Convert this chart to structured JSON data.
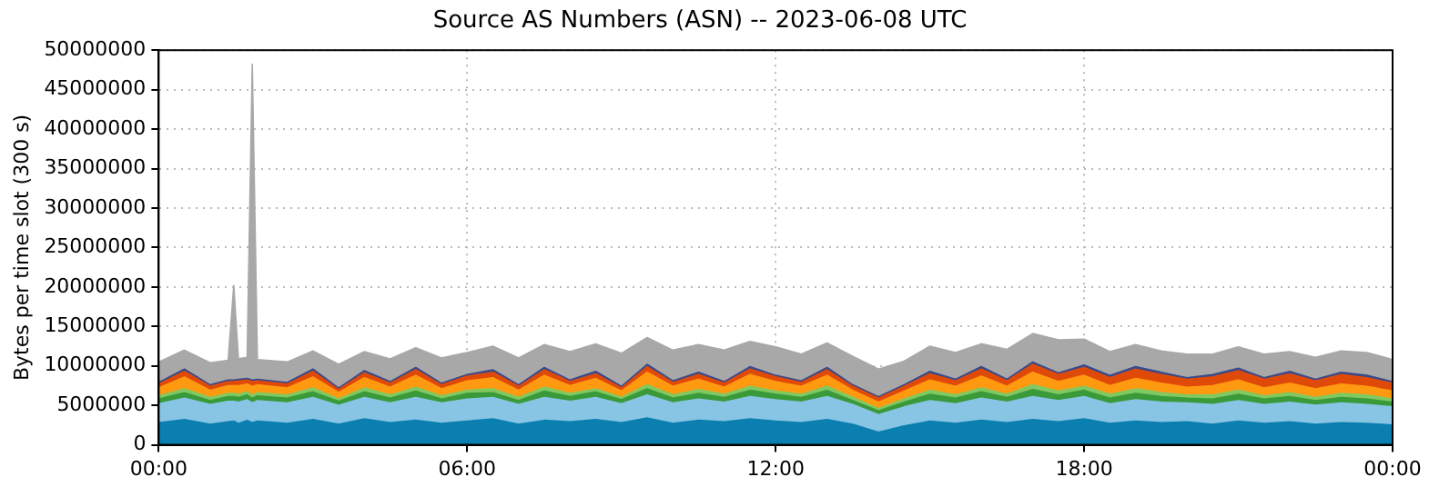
{
  "chart_data": {
    "type": "area",
    "title": "Source AS Numbers (ASN) -- 2023-06-08 UTC",
    "ylabel": "Bytes per time slot (300 s)",
    "stacked": true,
    "grid": true,
    "legend": false,
    "x": [
      0,
      0.5,
      1,
      1.35,
      1.46,
      1.55,
      1.72,
      1.82,
      1.92,
      2.5,
      3,
      3.5,
      4,
      4.5,
      5,
      5.5,
      6,
      6.5,
      7,
      7.5,
      8,
      8.5,
      9,
      9.5,
      10,
      10.5,
      11,
      11.5,
      12,
      12.5,
      13,
      13.5,
      14,
      14.5,
      15,
      15.5,
      16,
      16.5,
      17,
      17.5,
      18,
      18.5,
      19,
      19.5,
      20,
      20.5,
      21,
      21.5,
      22,
      22.5,
      23,
      23.5,
      24
    ],
    "xlim": [
      0,
      24
    ],
    "xticks": [
      {
        "value": 0,
        "label": "00:00"
      },
      {
        "value": 6,
        "label": "06:00"
      },
      {
        "value": 12,
        "label": "12:00"
      },
      {
        "value": 18,
        "label": "18:00"
      },
      {
        "value": 24,
        "label": "00:00"
      }
    ],
    "ylim": [
      0,
      50000000
    ],
    "yticks": [
      0,
      5000000,
      10000000,
      15000000,
      20000000,
      25000000,
      30000000,
      35000000,
      40000000,
      45000000,
      50000000
    ],
    "series": [
      {
        "color": "#0a7fb0",
        "values": [
          2800000.0,
          3200000.0,
          2600000.0,
          2900000.0,
          3000000.0,
          2700000.0,
          3100000.0,
          2800000.0,
          3000000.0,
          2700000.0,
          3200000.0,
          2600000.0,
          3300000.0,
          2800000.0,
          3100000.0,
          2700000.0,
          3000000.0,
          3300000.0,
          2600000.0,
          3100000.0,
          2900000.0,
          3200000.0,
          2800000.0,
          3400000.0,
          2700000.0,
          3100000.0,
          2900000.0,
          3300000.0,
          3000000.0,
          2800000.0,
          3200000.0,
          2600000.0,
          1600000.0,
          2400000.0,
          3000000.0,
          2700000.0,
          3100000.0,
          2800000.0,
          3200000.0,
          2900000.0,
          3300000.0,
          2700000.0,
          3000000.0,
          2800000.0,
          2900000.0,
          2600000.0,
          3000000.0,
          2700000.0,
          2900000.0,
          2600000.0,
          2800000.0,
          2700000.0,
          2500000.0
        ]
      },
      {
        "color": "#88c4e4",
        "values": [
          2400000.0,
          2700000.0,
          2500000.0,
          2600000.0,
          2500000.0,
          2700000.0,
          2600000.0,
          2500000.0,
          2600000.0,
          2600000.0,
          2800000.0,
          2400000.0,
          2700000.0,
          2500000.0,
          2900000.0,
          2600000.0,
          2800000.0,
          2700000.0,
          2500000.0,
          2900000.0,
          2600000.0,
          2800000.0,
          2400000.0,
          2900000.0,
          2600000.0,
          2700000.0,
          2500000.0,
          2800000.0,
          2700000.0,
          2600000.0,
          2900000.0,
          2500000.0,
          2200000.0,
          2400000.0,
          2600000.0,
          2500000.0,
          2800000.0,
          2600000.0,
          2900000.0,
          2700000.0,
          2800000.0,
          2500000.0,
          2700000.0,
          2600000.0,
          2400000.0,
          2500000.0,
          2600000.0,
          2400000.0,
          2500000.0,
          2400000.0,
          2500000.0,
          2400000.0,
          2300000.0
        ]
      },
      {
        "color": "#3a9a3a",
        "values": [
          600000.0,
          700000.0,
          500000.0,
          600000.0,
          600000.0,
          600000.0,
          600000.0,
          600000.0,
          600000.0,
          600000.0,
          700000.0,
          500000.0,
          700000.0,
          600000.0,
          800000.0,
          500000.0,
          700000.0,
          600000.0,
          500000.0,
          800000.0,
          600000.0,
          700000.0,
          500000.0,
          800000.0,
          600000.0,
          700000.0,
          600000.0,
          800000.0,
          700000.0,
          600000.0,
          800000.0,
          500000.0,
          500000.0,
          600000.0,
          800000.0,
          700000.0,
          800000.0,
          600000.0,
          900000.0,
          700000.0,
          800000.0,
          700000.0,
          800000.0,
          700000.0,
          600000.0,
          700000.0,
          800000.0,
          700000.0,
          700000.0,
          600000.0,
          700000.0,
          700000.0,
          600000.0
        ]
      },
      {
        "color": "#80c860",
        "values": [
          400000.0,
          500000.0,
          400000.0,
          400000.0,
          400000.0,
          400000.0,
          400000.0,
          400000.0,
          400000.0,
          400000.0,
          500000.0,
          300000.0,
          500000.0,
          400000.0,
          500000.0,
          400000.0,
          400000.0,
          500000.0,
          400000.0,
          500000.0,
          400000.0,
          400000.0,
          300000.0,
          500000.0,
          400000.0,
          500000.0,
          400000.0,
          500000.0,
          400000.0,
          400000.0,
          500000.0,
          400000.0,
          300000.0,
          400000.0,
          500000.0,
          400000.0,
          500000.0,
          400000.0,
          600000.0,
          500000.0,
          500000.0,
          500000.0,
          600000.0,
          500000.0,
          400000.0,
          500000.0,
          500000.0,
          400000.0,
          500000.0,
          400000.0,
          500000.0,
          500000.0,
          400000.0
        ]
      },
      {
        "color": "#ff9a10",
        "values": [
          1000000.0,
          1500000.0,
          900000.0,
          1000000.0,
          1000000.0,
          1100000.0,
          1000000.0,
          1100000.0,
          1000000.0,
          900000.0,
          1400000.0,
          800000.0,
          1300000.0,
          1000000.0,
          1500000.0,
          900000.0,
          1200000.0,
          1400000.0,
          900000.0,
          1500000.0,
          1000000.0,
          1300000.0,
          800000.0,
          1600000.0,
          1100000.0,
          1300000.0,
          900000.0,
          1500000.0,
          1200000.0,
          1000000.0,
          1400000.0,
          900000.0,
          800000.0,
          1000000.0,
          1300000.0,
          1100000.0,
          1500000.0,
          1000000.0,
          1600000.0,
          1200000.0,
          1400000.0,
          1100000.0,
          1300000.0,
          1200000.0,
          1000000.0,
          1200000.0,
          1300000.0,
          1000000.0,
          1200000.0,
          1100000.0,
          1200000.0,
          1100000.0,
          1000000.0
        ]
      },
      {
        "color": "#e04a08",
        "values": [
          500000.0,
          700000.0,
          500000.0,
          500000.0,
          500000.0,
          600000.0,
          500000.0,
          600000.0,
          500000.0,
          500000.0,
          700000.0,
          400000.0,
          600000.0,
          500000.0,
          700000.0,
          500000.0,
          600000.0,
          700000.0,
          500000.0,
          700000.0,
          500000.0,
          600000.0,
          400000.0,
          700000.0,
          500000.0,
          600000.0,
          500000.0,
          700000.0,
          600000.0,
          500000.0,
          700000.0,
          500000.0,
          500000.0,
          600000.0,
          800000.0,
          700000.0,
          900000.0,
          700000.0,
          1000000.0,
          900000.0,
          1000000.0,
          1000000.0,
          1200000.0,
          1100000.0,
          1000000.0,
          1100000.0,
          1200000.0,
          1100000.0,
          1200000.0,
          1000000.0,
          1200000.0,
          1100000.0,
          1000000.0
        ]
      },
      {
        "color": "#3a4a8a",
        "values": [
          200000.0,
          300000.0,
          200000.0,
          200000.0,
          200000.0,
          200000.0,
          200000.0,
          200000.0,
          200000.0,
          200000.0,
          300000.0,
          200000.0,
          300000.0,
          200000.0,
          300000.0,
          200000.0,
          200000.0,
          300000.0,
          200000.0,
          300000.0,
          200000.0,
          300000.0,
          200000.0,
          300000.0,
          200000.0,
          300000.0,
          200000.0,
          300000.0,
          200000.0,
          200000.0,
          300000.0,
          200000.0,
          200000.0,
          200000.0,
          300000.0,
          200000.0,
          300000.0,
          200000.0,
          300000.0,
          200000.0,
          300000.0,
          300000.0,
          300000.0,
          300000.0,
          200000.0,
          300000.0,
          300000.0,
          200000.0,
          300000.0,
          200000.0,
          300000.0,
          300000.0,
          200000.0
        ]
      },
      {
        "color": "#a8a8a8",
        "values": [
          2600000.0,
          2400000.0,
          2800000.0,
          2500000.0,
          12000000.0,
          2600000.0,
          2700000.0,
          40000000.0,
          2500000.0,
          2600000.0,
          2300000.0,
          3000000.0,
          2400000.0,
          2900000.0,
          2500000.0,
          3200000.0,
          2800000.0,
          3000000.0,
          3400000.0,
          2900000.0,
          3600000.0,
          3500000.0,
          4200000.0,
          3400000.0,
          3900000.0,
          3500000.0,
          4000000.0,
          3200000.0,
          3600000.0,
          3400000.0,
          3100000.0,
          3600000.0,
          3500000.0,
          3000000.0,
          3200000.0,
          3400000.0,
          2900000.0,
          3800000.0,
          3600000.0,
          4200000.0,
          3300000.0,
          3000000.0,
          2800000.0,
          2700000.0,
          3000000.0,
          2600000.0,
          2700000.0,
          3000000.0,
          2500000.0,
          2800000.0,
          2700000.0,
          2900000.0,
          2800000.0
        ]
      }
    ]
  }
}
